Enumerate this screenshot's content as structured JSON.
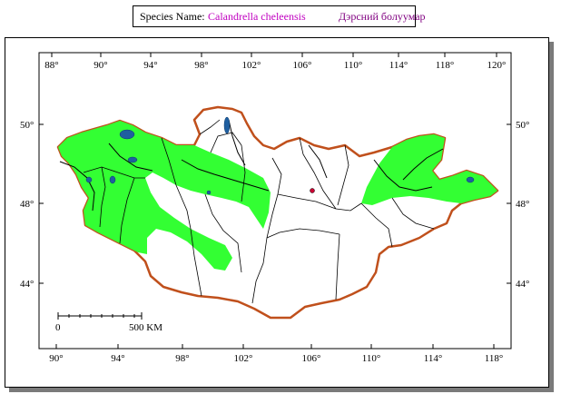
{
  "title": {
    "label": "Species Name:",
    "scientific_name": "Calandrella cheleensis",
    "local_name": "Дэрсний болуумар",
    "colors": {
      "scientific": "#c000c0",
      "local": "#800080"
    }
  },
  "map": {
    "top_lon_ticks": [
      "88°",
      "90°",
      "94°",
      "98°",
      "102°",
      "106°",
      "110°",
      "114°",
      "118°",
      "120°"
    ],
    "bottom_lon_ticks": [
      "90°",
      "94°",
      "98°",
      "102°",
      "106°",
      "110°",
      "114°",
      "118°"
    ],
    "lat_ticks_left": [
      "50°",
      "48°",
      "44°"
    ],
    "lat_ticks_right": [
      "50°",
      "48°",
      "44°"
    ],
    "scale_bar": {
      "start_label": "0",
      "end_label": "500 KM"
    },
    "colors": {
      "range": "#33ff33",
      "border": "#c0501c",
      "lakes": "#1f5fa0",
      "rivers": "#000000",
      "capital": "#cc0033"
    }
  }
}
